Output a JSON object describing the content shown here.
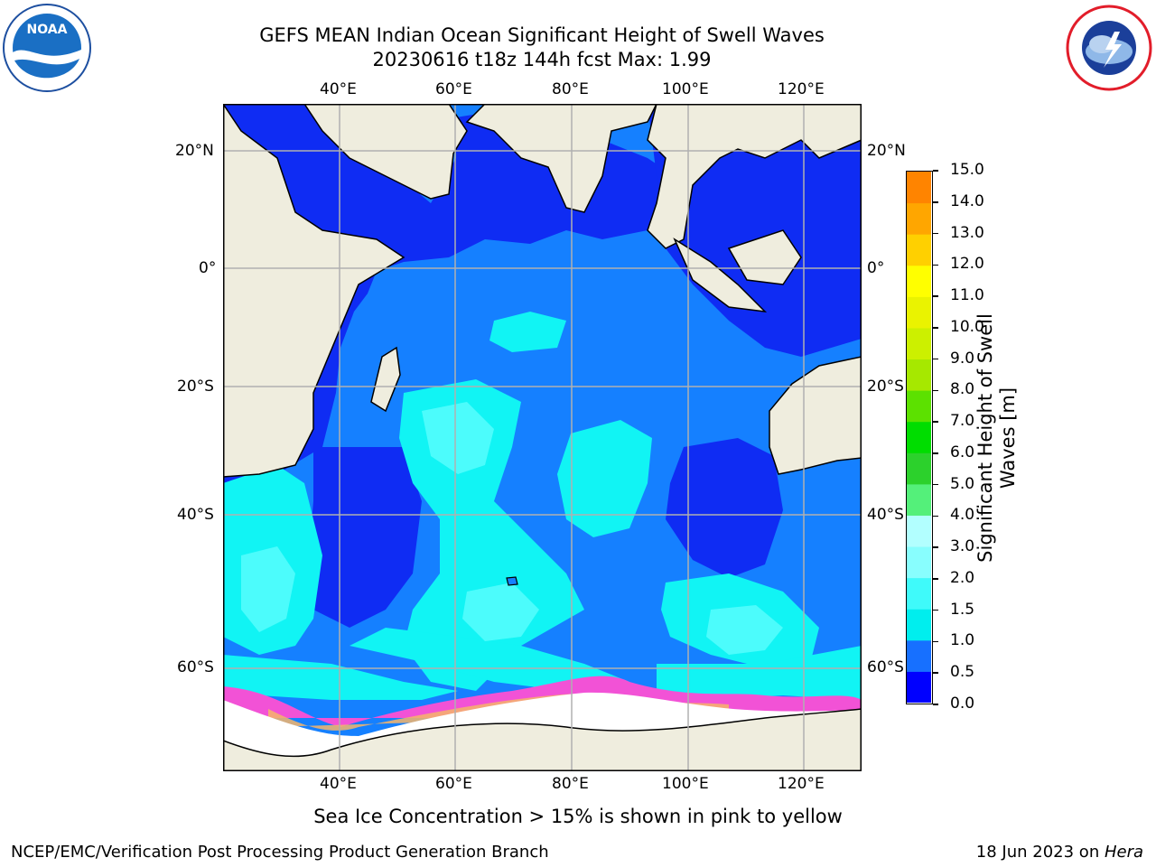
{
  "header": {
    "title_line1": "GEFS MEAN Indian Ocean Significant Height of Swell Waves",
    "title_line2": "20230616 t18z 144h fcst   Max: 1.99"
  },
  "logos": {
    "noaa_text": "NOAA",
    "noaa_ring": "NATIONAL OCEANIC AND ATMOSPHERIC ADMINISTRATION · U.S. DEPARTMENT OF COMMERCE",
    "nws_ring": "NATIONAL WEATHER SERVICE"
  },
  "map": {
    "lon_ticks_top": [
      "40°E",
      "60°E",
      "80°E",
      "100°E",
      "120°E"
    ],
    "lon_ticks_bottom": [
      "40°E",
      "60°E",
      "80°E",
      "100°E",
      "120°E"
    ],
    "lat_ticks_left": [
      "20°N",
      "0°",
      "20°S",
      "40°S",
      "60°S"
    ],
    "lat_ticks_right": [
      "20°N",
      "0°",
      "20°S",
      "40°S",
      "60°S"
    ],
    "colors": {
      "land": "#efedde",
      "ocean_low": "#0f2cf3",
      "ocean_mid": "#1580ff",
      "ocean_high": "#11f4f4",
      "ocean_top": "#4cfcfc",
      "sea_ice_pink": "#f252d6",
      "sea_ice_orange": "#f6b56a",
      "grid": "#b0b0b0"
    }
  },
  "colorbar": {
    "label_line1": "Significant Height of Swell",
    "label_line2": "Waves [m]",
    "ticks": [
      "15.0",
      "14.0",
      "13.0",
      "12.0",
      "11.0",
      "10.0",
      "9.0",
      "8.0",
      "7.0",
      "6.0",
      "5.0",
      "4.0",
      "3.0",
      "2.0",
      "1.5",
      "1.0",
      "0.5",
      "0.0"
    ],
    "bands": [
      "#0000ff",
      "#1770ff",
      "#00eeee",
      "#3ffafa",
      "#88fefe",
      "#b2ffff",
      "#54f07a",
      "#2cd12c",
      "#00dd00",
      "#5ce100",
      "#a6e800",
      "#ccf000",
      "#eaf300",
      "#ffff00",
      "#ffd000",
      "#ffa600",
      "#ff8400",
      "#ff5600",
      "#ff2a00",
      "#ff0000"
    ]
  },
  "footer": {
    "note": "Sea Ice Concentration > 15% is shown in pink to yellow",
    "branch": "NCEP/EMC/Verification Post Processing Product Generation Branch",
    "date": "18 Jun 2023 on ",
    "machine": "Hera"
  }
}
